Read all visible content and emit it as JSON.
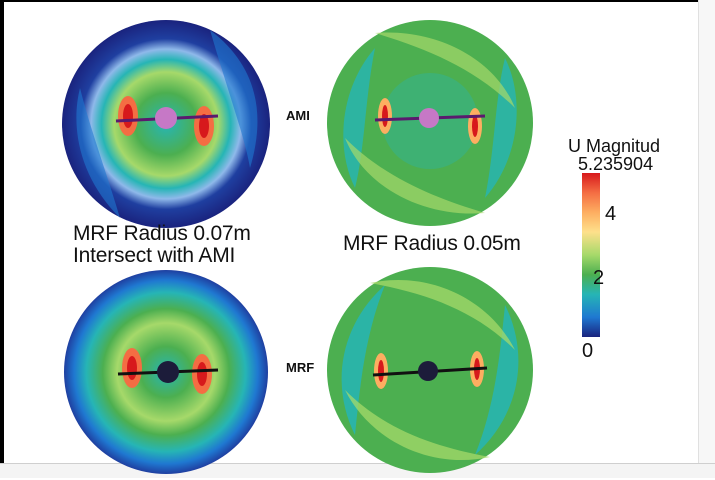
{
  "labels": {
    "ami": "AMI",
    "mrf": "MRF",
    "caption_left_line1": "MRF Radius 0.07m",
    "caption_left_line2": "Intersect with AMI",
    "caption_right": "MRF Radius 0.05m"
  },
  "legend": {
    "title": "U Magnitud",
    "max_value": "5.235904",
    "ticks": [
      "4",
      "2",
      "0"
    ],
    "colors": [
      "#d7191c",
      "#f46d43",
      "#fdae61",
      "#fee08b",
      "#a6d96a",
      "#4caf50",
      "#26b5b5",
      "#1f78d1",
      "#1a237e"
    ]
  }
}
